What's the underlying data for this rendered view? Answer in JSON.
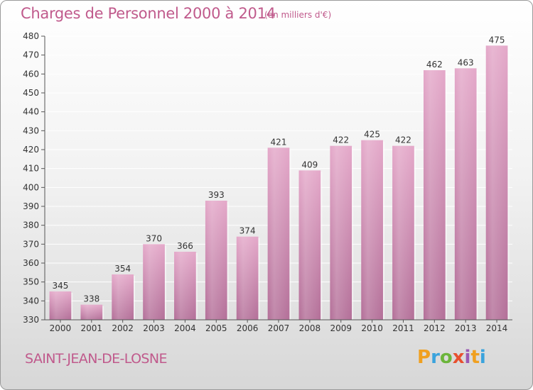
{
  "chart_data": {
    "type": "bar",
    "title": "Charges de Personnel 2000 à 2014",
    "unit_note": "(en milliers d'€)",
    "categories": [
      "2000",
      "2001",
      "2002",
      "2003",
      "2004",
      "2005",
      "2006",
      "2007",
      "2008",
      "2009",
      "2010",
      "2011",
      "2012",
      "2013",
      "2014"
    ],
    "values": [
      345,
      338,
      354,
      370,
      366,
      393,
      374,
      421,
      409,
      422,
      425,
      422,
      462,
      463,
      475
    ],
    "ylim": [
      330,
      480
    ],
    "yticks": [
      330,
      340,
      350,
      360,
      370,
      380,
      390,
      400,
      410,
      420,
      430,
      440,
      450,
      460,
      470,
      480
    ],
    "grid": true,
    "bar_color": "#d98bb6"
  },
  "footer": {
    "place": "SAINT-JEAN-DE-LOSNE",
    "logo_letters": [
      "P",
      "r",
      "o",
      "x",
      "i",
      "t",
      "i"
    ],
    "logo_colors": [
      "#f0a020",
      "#3aa3dd",
      "#6cb53b",
      "#e8502f",
      "#9a59b4",
      "#f0a020",
      "#3aa3dd"
    ]
  }
}
